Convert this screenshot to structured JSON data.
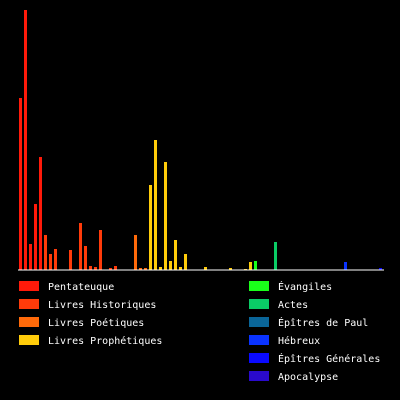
{
  "chart_data": {
    "type": "bar",
    "title": "",
    "xlabel": "",
    "ylabel": "",
    "ylim": [
      0,
      260
    ],
    "grid": false,
    "legend_placement": "bottom",
    "background": "#000000",
    "baseline_color": "#ffffff",
    "series": [
      {
        "name": "Pentateuque",
        "color": "#ff1a0a",
        "values": [
          172,
          260,
          26,
          66,
          113
        ]
      },
      {
        "name": "Livres Historiques",
        "color": "#ff3b0a",
        "values": [
          35,
          16,
          21,
          0,
          0,
          20,
          0,
          47,
          24,
          4,
          3,
          40,
          0,
          2,
          4,
          0
        ]
      },
      {
        "name": "Livres Poétiques",
        "color": "#ff6a0a",
        "values": [
          0,
          0,
          35,
          2,
          2
        ]
      },
      {
        "name": "Livres Prophétiques",
        "color": "#ffcc0a",
        "values": [
          85,
          130,
          3,
          108,
          9,
          30,
          3,
          16,
          0,
          0,
          0,
          3,
          0,
          0,
          0,
          0,
          2,
          0,
          0,
          1,
          8
        ]
      },
      {
        "name": "Évangiles",
        "color": "#1aff1a",
        "values": [
          9,
          0,
          0,
          0
        ]
      },
      {
        "name": "Actes",
        "color": "#0acc66",
        "values": [
          28
        ]
      },
      {
        "name": "Épîtres de Paul",
        "color": "#0a6699",
        "values": [
          0,
          0,
          0,
          0,
          0,
          0,
          0,
          0,
          0,
          0,
          0,
          0,
          0
        ]
      },
      {
        "name": "Hébreux",
        "color": "#0a33ff",
        "values": [
          8
        ]
      },
      {
        "name": "Épîtres Générales",
        "color": "#0a0aff",
        "values": [
          0,
          0,
          0,
          0,
          0,
          0,
          2
        ]
      },
      {
        "name": "Apocalypse",
        "color": "#2a0acc",
        "values": [
          0
        ]
      }
    ]
  }
}
